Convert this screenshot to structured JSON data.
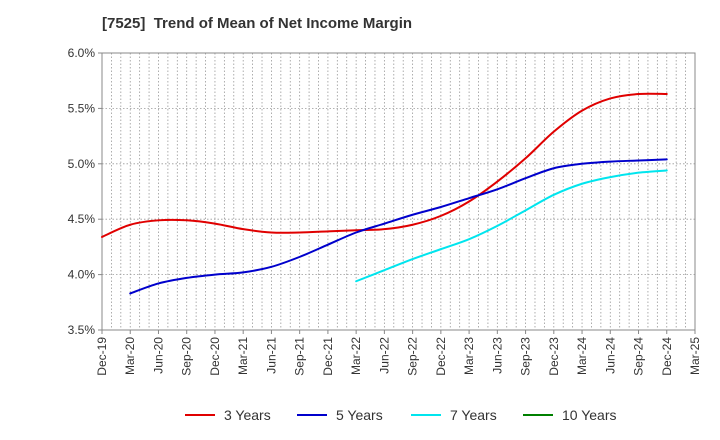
{
  "chart_data": {
    "type": "line",
    "title": "[7525]  Trend of Mean of Net Income Margin",
    "xlabel": "",
    "ylabel": "",
    "x": [
      "Dec-19",
      "Mar-20",
      "Jun-20",
      "Sep-20",
      "Dec-20",
      "Mar-21",
      "Jun-21",
      "Sep-21",
      "Dec-21",
      "Mar-22",
      "Jun-22",
      "Sep-22",
      "Dec-22",
      "Mar-23",
      "Jun-23",
      "Sep-23",
      "Dec-23",
      "Mar-24",
      "Jun-24",
      "Sep-24",
      "Dec-24",
      "Mar-25"
    ],
    "y_ticks": [
      "3.5%",
      "4.0%",
      "4.5%",
      "5.0%",
      "5.5%",
      "6.0%"
    ],
    "ylim": [
      3.5,
      6.0
    ],
    "grid": true,
    "legend_position": "bottom",
    "series": [
      {
        "name": "3 Years",
        "color": "#e00000",
        "values": [
          4.34,
          4.45,
          4.49,
          4.49,
          4.46,
          4.41,
          4.38,
          4.38,
          4.39,
          4.4,
          4.41,
          4.45,
          4.53,
          4.66,
          4.84,
          5.05,
          5.29,
          5.48,
          5.59,
          5.63,
          5.63,
          null
        ]
      },
      {
        "name": "5 Years",
        "color": "#0000cc",
        "values": [
          null,
          3.83,
          3.92,
          3.97,
          4.0,
          4.02,
          4.07,
          4.16,
          4.27,
          4.38,
          4.46,
          4.54,
          4.61,
          4.69,
          4.77,
          4.87,
          4.96,
          5.0,
          5.02,
          5.03,
          5.04,
          null
        ]
      },
      {
        "name": "7 Years",
        "color": "#00e5ee",
        "values": [
          null,
          null,
          null,
          null,
          null,
          null,
          null,
          null,
          null,
          3.94,
          4.04,
          4.14,
          4.23,
          4.32,
          4.44,
          4.58,
          4.72,
          4.82,
          4.88,
          4.92,
          4.94,
          null
        ]
      },
      {
        "name": "10 Years",
        "color": "#008000",
        "values": [
          null,
          null,
          null,
          null,
          null,
          null,
          null,
          null,
          null,
          null,
          null,
          null,
          null,
          null,
          null,
          null,
          null,
          null,
          null,
          null,
          null,
          null
        ]
      }
    ]
  }
}
